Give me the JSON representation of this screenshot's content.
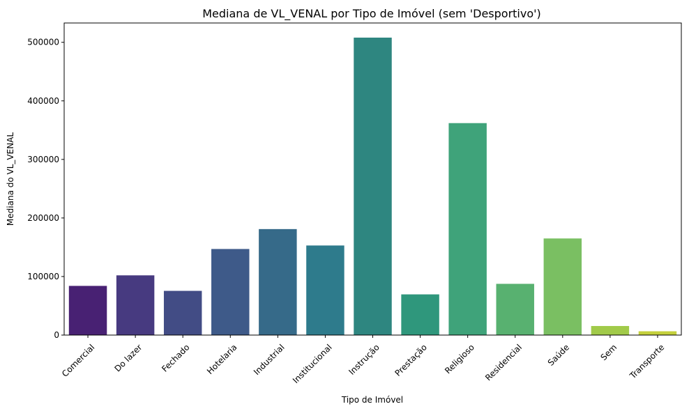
{
  "chart_data": {
    "type": "bar",
    "title": "Mediana de VL_VENAL por Tipo de Imóvel (sem 'Desportivo')",
    "xlabel": "Tipo de Imóvel",
    "ylabel": "Mediana do VL_VENAL",
    "ylim": [
      0,
      533000
    ],
    "yticks": [
      0,
      100000,
      200000,
      300000,
      400000,
      500000
    ],
    "grid": false,
    "categories": [
      "Comercial",
      "Do lazer",
      "Fechado",
      "Hotelaria",
      "Industrial",
      "Institucional",
      "Instrução",
      "Prestação",
      "Religioso",
      "Residencial",
      "Saúde",
      "Sem",
      "Transporte"
    ],
    "values": [
      84000,
      102000,
      75500,
      147000,
      181000,
      153000,
      508000,
      69500,
      362000,
      87500,
      165000,
      15500,
      6500
    ],
    "colors": [
      "#482173",
      "#473a80",
      "#424c85",
      "#3e5a89",
      "#366a89",
      "#2e7b8c",
      "#2e8680",
      "#2f977c",
      "#3fa37a",
      "#58b170",
      "#7abf62",
      "#a1ca49",
      "#c4d03c"
    ]
  }
}
